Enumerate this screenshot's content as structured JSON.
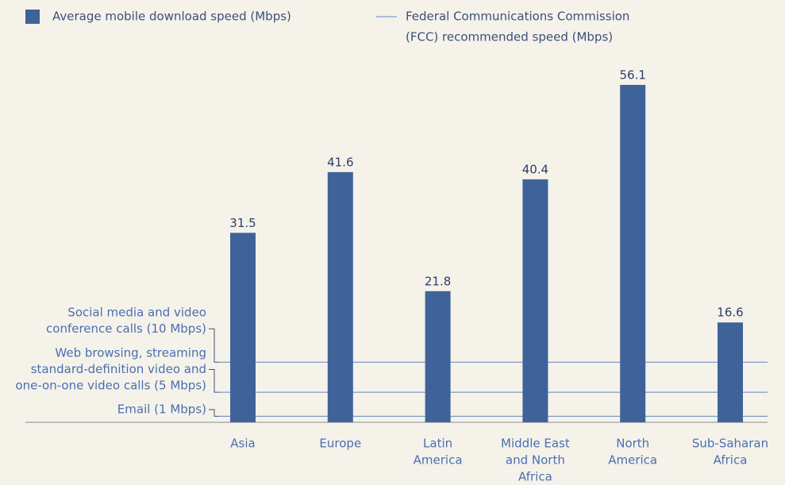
{
  "chart_data": {
    "type": "bar",
    "categories": [
      [
        "Asia"
      ],
      [
        "Europe"
      ],
      [
        "Latin",
        "America"
      ],
      [
        "Middle East",
        "and North",
        "Africa"
      ],
      [
        "North",
        "America"
      ],
      [
        "Sub-Saharan",
        "Africa"
      ]
    ],
    "series": [
      {
        "name": "Average mobile download speed (Mbps)",
        "color": "#3f6399",
        "values": [
          31.5,
          41.6,
          21.8,
          40.4,
          56.1,
          16.6
        ]
      }
    ],
    "reference_lines": {
      "name": [
        "Federal Communications Commission",
        "(FCC) recommended speed (Mbps)"
      ],
      "color": "#5f86bf",
      "lines": [
        {
          "label": [
            "Social media and video",
            "conference calls (10 Mbps)"
          ],
          "value": 10
        },
        {
          "label": [
            "Web browsing, streaming",
            "standard-definition video and",
            "one-on-one video calls (5 Mbps)"
          ],
          "value": 5
        },
        {
          "label": [
            "Email (1 Mbps)"
          ],
          "value": 1
        }
      ]
    },
    "ylim": [
      0,
      60
    ],
    "legend": "top-left"
  }
}
